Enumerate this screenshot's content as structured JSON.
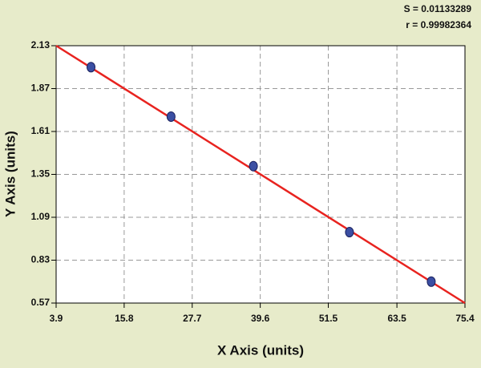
{
  "chart_data": {
    "type": "scatter",
    "annotations": [
      "S = 0.01133289",
      "r = 0.99982364"
    ],
    "x_label": "X Axis (units)",
    "y_label": "Y Axis (units)",
    "points": {
      "x": [
        10,
        24,
        38.4,
        55.2,
        69.5
      ],
      "values": [
        2.0,
        1.7,
        1.4,
        1.0,
        0.7
      ],
      "color": "#3b4fa3"
    },
    "fit_line": {
      "x": [
        3.9,
        75.4
      ],
      "values": [
        2.13,
        0.57
      ],
      "color": "#e8231f"
    },
    "xlim": [
      3.9,
      75.4
    ],
    "xticks": [
      3.9,
      15.8,
      27.7,
      39.6,
      51.5,
      63.5,
      75.4
    ],
    "ylim": [
      0.57,
      2.13
    ],
    "yticks": [
      0.57,
      0.83,
      1.09,
      1.35,
      1.61,
      1.87,
      2.13
    ],
    "grid": true
  }
}
